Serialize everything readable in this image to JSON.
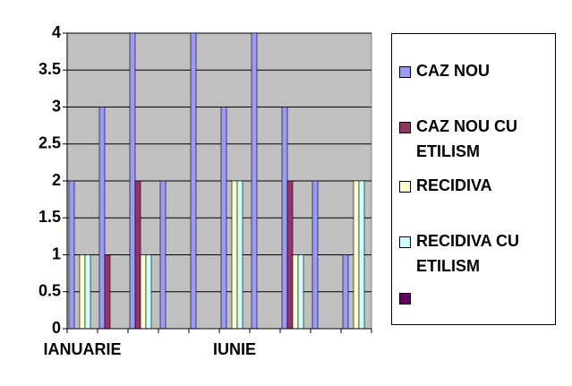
{
  "chart_data": {
    "type": "bar",
    "categories": [
      "IANUARIE",
      null,
      null,
      null,
      null,
      "IUNIE",
      null,
      null,
      null,
      null
    ],
    "series": [
      {
        "name": "CAZ NOU",
        "color": "#9999ff",
        "values": [
          2,
          3,
          4,
          2,
          4,
          3,
          4,
          3,
          2,
          1
        ]
      },
      {
        "name": "CAZ NOU CU ETILISM",
        "color": "#993366",
        "values": [
          0,
          1,
          2,
          0,
          0,
          0,
          0,
          2,
          0,
          0
        ]
      },
      {
        "name": "RECIDIVA",
        "color": "#ffffcc",
        "values": [
          1,
          0,
          1,
          0,
          0,
          2,
          0,
          1,
          0,
          2
        ]
      },
      {
        "name": "RECIDIVA CU ETILISM",
        "color": "#ccffff",
        "values": [
          1,
          0,
          1,
          0,
          0,
          2,
          0,
          1,
          0,
          2
        ]
      },
      {
        "name": null,
        "color": "#660066",
        "values": [
          0,
          0,
          0,
          0,
          0,
          0,
          0,
          0,
          0,
          0
        ]
      }
    ],
    "ylim": [
      0,
      4
    ],
    "yticks": [
      0,
      0.5,
      1,
      1.5,
      2,
      2.5,
      3,
      3.5,
      4
    ],
    "grid": true,
    "legend": "right"
  }
}
